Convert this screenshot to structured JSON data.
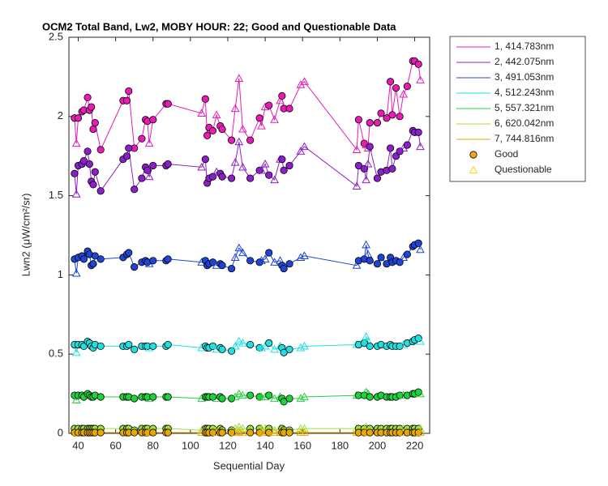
{
  "chart_data": {
    "type": "line",
    "title": "OCM2 Total Band, Lw2, MOBY HOUR: 22;  Good and Questionable Data",
    "x_label": "Sequential Day",
    "y_label": "Lwn2 (μW/cm²/sr)",
    "xlim": [
      35,
      228
    ],
    "ylim": [
      0,
      2.5
    ],
    "xticks": [
      40,
      60,
      80,
      100,
      120,
      140,
      160,
      180,
      200,
      220
    ],
    "yticks": [
      0,
      0.5,
      1,
      1.5,
      2,
      2.5
    ],
    "x": [
      38,
      39,
      40,
      42,
      43,
      45,
      46,
      47,
      48,
      49,
      52,
      64,
      66,
      67,
      70,
      74,
      76,
      77,
      78,
      80,
      87,
      88,
      106,
      108,
      109,
      110,
      112,
      114,
      116,
      117,
      122,
      124,
      126,
      128,
      132,
      137,
      138,
      140,
      142,
      145,
      148,
      149,
      150,
      153,
      159,
      161,
      189,
      190,
      193,
      194,
      195,
      196,
      200,
      202,
      205,
      207,
      208,
      210,
      212,
      214,
      216,
      219,
      220,
      222,
      223
    ],
    "quality": [
      0,
      1,
      0,
      0,
      0,
      0,
      0,
      0,
      0,
      0,
      0,
      0,
      0,
      0,
      0,
      0,
      0,
      0,
      1,
      0,
      0,
      0,
      1,
      0,
      0,
      0,
      0,
      1,
      0,
      0,
      0,
      1,
      1,
      1,
      0,
      0,
      1,
      1,
      0,
      1,
      1,
      0,
      0,
      0,
      1,
      1,
      1,
      0,
      0,
      1,
      1,
      0,
      0,
      0,
      0,
      0,
      0,
      0,
      0,
      1,
      0,
      0,
      0,
      0,
      1
    ],
    "marker_legend": [
      {
        "name": "Good",
        "color": "#f5a51e"
      },
      {
        "name": "Questionable",
        "color": "#f5d21e"
      }
    ],
    "series": [
      {
        "name": "1, 414.783nm",
        "color": "#e81cb4",
        "values": [
          1.99,
          1.83,
          1.99,
          2.03,
          2.04,
          2.12,
          2.04,
          2.06,
          1.92,
          1.96,
          1.79,
          2.1,
          2.1,
          2.16,
          1.8,
          1.86,
          1.98,
          1.97,
          1.83,
          1.98,
          2.08,
          2.08,
          2.02,
          2.11,
          1.88,
          1.93,
          1.91,
          2.01,
          1.94,
          1.92,
          1.85,
          2.05,
          2.24,
          1.92,
          1.85,
          1.99,
          1.94,
          2.06,
          2.07,
          1.98,
          2.1,
          2.13,
          2.05,
          2.05,
          2.2,
          2.22,
          1.79,
          1.98,
          1.83,
          1.82,
          1.8,
          1.96,
          1.96,
          2.02,
          1.99,
          2.22,
          2.01,
          2.18,
          2.0,
          2.14,
          2.19,
          2.35,
          2.35,
          2.33,
          2.23
        ]
      },
      {
        "name": "2, 442.075nm",
        "color": "#8c1ecc",
        "values": [
          1.64,
          1.51,
          1.69,
          1.7,
          1.72,
          1.78,
          1.7,
          1.59,
          1.57,
          1.65,
          1.53,
          1.73,
          1.75,
          1.8,
          1.54,
          1.61,
          1.68,
          1.66,
          1.62,
          1.69,
          1.69,
          1.7,
          1.68,
          1.73,
          1.58,
          1.61,
          1.62,
          1.65,
          1.64,
          1.62,
          1.61,
          1.71,
          1.84,
          1.68,
          1.61,
          1.66,
          1.66,
          1.7,
          1.63,
          1.6,
          1.73,
          1.73,
          1.66,
          1.69,
          1.78,
          1.81,
          1.56,
          1.69,
          1.67,
          1.6,
          1.7,
          1.81,
          1.61,
          1.65,
          1.66,
          1.8,
          1.67,
          1.75,
          1.78,
          1.8,
          1.82,
          1.91,
          1.9,
          1.9,
          1.81
        ]
      },
      {
        "name": "3, 491.053nm",
        "color": "#1f44d6",
        "values": [
          1.1,
          1.01,
          1.11,
          1.12,
          1.1,
          1.15,
          1.13,
          1.06,
          1.07,
          1.12,
          1.1,
          1.11,
          1.13,
          1.14,
          1.05,
          1.08,
          1.09,
          1.08,
          1.07,
          1.09,
          1.09,
          1.1,
          1.08,
          1.09,
          1.06,
          1.07,
          1.08,
          1.06,
          1.07,
          1.06,
          1.04,
          1.11,
          1.17,
          1.14,
          1.09,
          1.08,
          1.09,
          1.1,
          1.14,
          1.08,
          1.09,
          1.06,
          1.04,
          1.07,
          1.11,
          1.12,
          1.06,
          1.09,
          1.1,
          1.19,
          1.13,
          1.09,
          1.07,
          1.11,
          1.07,
          1.11,
          1.08,
          1.09,
          1.08,
          1.11,
          1.13,
          1.18,
          1.19,
          1.2,
          1.16
        ]
      },
      {
        "name": "4, 512.243nm",
        "color": "#1ee0e0",
        "values": [
          0.56,
          0.51,
          0.56,
          0.56,
          0.55,
          0.58,
          0.57,
          0.55,
          0.54,
          0.56,
          0.55,
          0.55,
          0.55,
          0.56,
          0.53,
          0.55,
          0.55,
          0.55,
          0.54,
          0.55,
          0.55,
          0.56,
          0.54,
          0.55,
          0.54,
          0.54,
          0.55,
          0.53,
          0.54,
          0.53,
          0.52,
          0.55,
          0.58,
          0.57,
          0.56,
          0.54,
          0.54,
          0.55,
          0.57,
          0.53,
          0.55,
          0.54,
          0.51,
          0.53,
          0.54,
          0.55,
          0.56,
          0.56,
          0.57,
          0.61,
          0.58,
          0.55,
          0.55,
          0.56,
          0.55,
          0.56,
          0.55,
          0.55,
          0.55,
          0.56,
          0.57,
          0.58,
          0.59,
          0.6,
          0.58
        ]
      },
      {
        "name": "5, 557.321nm",
        "color": "#1ed23c",
        "values": [
          0.24,
          0.21,
          0.24,
          0.24,
          0.23,
          0.25,
          0.24,
          0.23,
          0.23,
          0.24,
          0.23,
          0.23,
          0.23,
          0.23,
          0.22,
          0.23,
          0.23,
          0.23,
          0.22,
          0.23,
          0.23,
          0.23,
          0.22,
          0.23,
          0.23,
          0.23,
          0.23,
          0.22,
          0.23,
          0.22,
          0.22,
          0.23,
          0.25,
          0.24,
          0.24,
          0.23,
          0.23,
          0.23,
          0.24,
          0.22,
          0.23,
          0.22,
          0.2,
          0.22,
          0.22,
          0.23,
          0.24,
          0.24,
          0.24,
          0.26,
          0.25,
          0.23,
          0.23,
          0.24,
          0.23,
          0.23,
          0.23,
          0.23,
          0.24,
          0.24,
          0.24,
          0.25,
          0.25,
          0.26,
          0.25
        ]
      },
      {
        "name": "6, 620.042nm",
        "color": "#a0e040",
        "values": [
          0.03,
          0.02,
          0.03,
          0.03,
          0.03,
          0.03,
          0.03,
          0.03,
          0.03,
          0.03,
          0.03,
          0.03,
          0.03,
          0.03,
          0.02,
          0.03,
          0.03,
          0.03,
          0.02,
          0.03,
          0.03,
          0.03,
          0.02,
          0.03,
          0.03,
          0.03,
          0.03,
          0.02,
          0.03,
          0.02,
          0.02,
          0.03,
          0.04,
          0.03,
          0.03,
          0.03,
          0.03,
          0.03,
          0.03,
          0.02,
          0.03,
          0.03,
          0.02,
          0.02,
          0.03,
          0.03,
          0.03,
          0.03,
          0.03,
          0.04,
          0.03,
          0.03,
          0.03,
          0.03,
          0.03,
          0.03,
          0.03,
          0.03,
          0.03,
          0.03,
          0.03,
          0.03,
          0.03,
          0.03,
          0.03
        ]
      },
      {
        "name": "7, 744.816nm",
        "color": "#e6aa00",
        "values": [
          0.005,
          0.005,
          0.005,
          0.005,
          0.005,
          0.005,
          0.005,
          0.005,
          0.005,
          0.005,
          0.005,
          0.005,
          0.005,
          0.005,
          0.005,
          0.005,
          0.005,
          0.005,
          0.005,
          0.005,
          0.005,
          0.005,
          0.005,
          0.005,
          0.005,
          0.005,
          0.005,
          0.005,
          0.005,
          0.005,
          0.005,
          0.005,
          0.01,
          0.005,
          0.005,
          0.005,
          0.005,
          0.005,
          0.005,
          0.005,
          0.005,
          0.005,
          0.005,
          0.005,
          0.005,
          0.005,
          0.005,
          0.005,
          0.005,
          0.01,
          0.005,
          0.005,
          0.005,
          0.005,
          0.005,
          0.005,
          0.005,
          0.005,
          0.005,
          0.005,
          0.005,
          0.005,
          0.005,
          0.005,
          0.005
        ]
      }
    ]
  }
}
